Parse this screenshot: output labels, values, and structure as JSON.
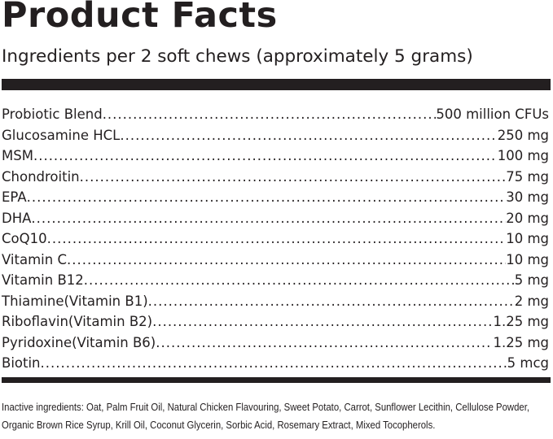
{
  "title": "Product Facts",
  "subtitle": "Ingredients per 2 soft chews (approximately 5 grams)",
  "ingredients": [
    {
      "name": "Probiotic Blend",
      "amount": "500 million CFUs"
    },
    {
      "name": "Glucosamine HCL",
      "amount": "250 mg"
    },
    {
      "name": "MSM",
      "amount": "100 mg"
    },
    {
      "name": "Chondroitin",
      "amount": "75 mg"
    },
    {
      "name": "EPA",
      "amount": "30 mg"
    },
    {
      "name": "DHA",
      "amount": "20 mg"
    },
    {
      "name": "CoQ10",
      "amount": "10 mg"
    },
    {
      "name": "Vitamin C",
      "amount": "10 mg"
    },
    {
      "name": "Vitamin B12",
      "amount": "5 mg"
    },
    {
      "name": "Thiamine(Vitamin B1)",
      "amount": "2 mg"
    },
    {
      "name": "Riboflavin(Vitamin B2)",
      "amount": "1.25 mg"
    },
    {
      "name": "Pyridoxine(Vitamin B6)",
      "amount": "1.25 mg"
    },
    {
      "name": "Biotin",
      "amount": "5 mcg"
    }
  ],
  "inactive": "Inactive ingredients: Oat, Palm Fruit Oil, Natural Chicken Flavouring, Sweet Potato, Carrot, Sunflower Lecithin, Cellulose Powder, Organic Brown Rice Syrup, Krill Oil, Coconut Glycerin, Sorbic Acid, Rosemary Extract, Mixed Tocopherols."
}
